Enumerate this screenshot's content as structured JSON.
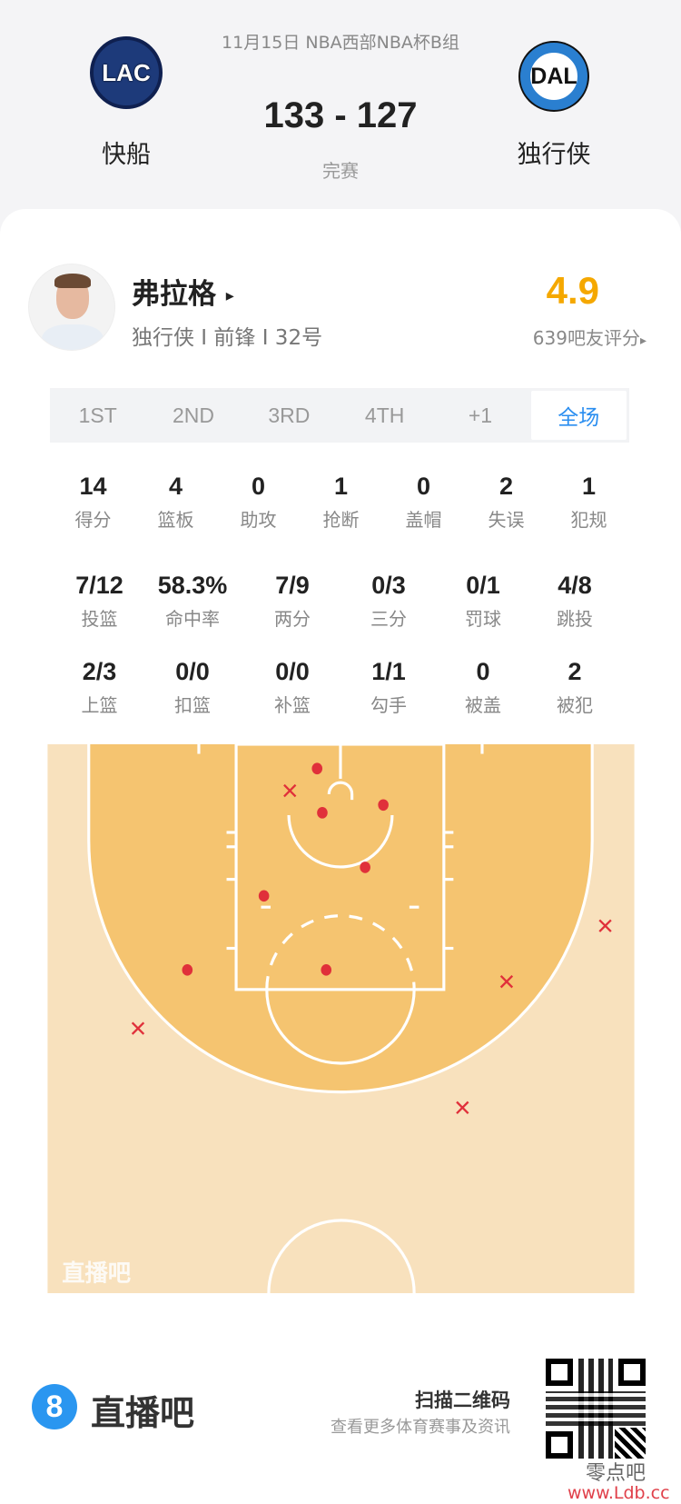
{
  "match": {
    "info": "11月15日 NBA西部NBA杯B组",
    "score": "133 - 127",
    "status": "完赛",
    "home": {
      "name": "快船",
      "abbr": "LAC"
    },
    "away": {
      "name": "独行侠",
      "abbr": "DAL"
    }
  },
  "player": {
    "name": "弗拉格",
    "arrow": "▸",
    "meta": "独行侠 I 前锋 I 32号",
    "rating": "4.9",
    "rating_label": "639吧友评分",
    "rating_arrow": "▸",
    "rating_color": "#f5a800"
  },
  "tabs": [
    {
      "label": "1ST"
    },
    {
      "label": "2ND"
    },
    {
      "label": "3RD"
    },
    {
      "label": "4TH"
    },
    {
      "label": "+1"
    },
    {
      "label": "全场",
      "active": true
    }
  ],
  "stats": [
    [
      {
        "v": "14",
        "l": "得分"
      },
      {
        "v": "4",
        "l": "篮板"
      },
      {
        "v": "0",
        "l": "助攻"
      },
      {
        "v": "1",
        "l": "抢断"
      },
      {
        "v": "0",
        "l": "盖帽"
      },
      {
        "v": "2",
        "l": "失误"
      },
      {
        "v": "1",
        "l": "犯规"
      }
    ],
    [
      {
        "v": "7/12",
        "l": "投篮"
      },
      {
        "v": "58.3%",
        "l": "命中率"
      },
      {
        "v": "7/9",
        "l": "两分"
      },
      {
        "v": "0/3",
        "l": "三分"
      },
      {
        "v": "0/1",
        "l": "罚球"
      },
      {
        "v": "4/8",
        "l": "跳投"
      }
    ],
    [
      {
        "v": "2/3",
        "l": "上篮"
      },
      {
        "v": "0/0",
        "l": "扣篮"
      },
      {
        "v": "0/0",
        "l": "补篮"
      },
      {
        "v": "1/1",
        "l": "勾手"
      },
      {
        "v": "0",
        "l": "被盖"
      },
      {
        "v": "2",
        "l": "被犯"
      }
    ]
  ],
  "chart_data": {
    "type": "scatter",
    "description_units": "feet from basket (x lateral, y toward midcourt)",
    "made_color": "#e0303a",
    "miss_color": "#e0303a",
    "shots": [
      {
        "x": -1.8,
        "y": -2.7,
        "made": true
      },
      {
        "x": -1.4,
        "y": 0.7,
        "made": true
      },
      {
        "x": 3.3,
        "y": 0.1,
        "made": true
      },
      {
        "x": 1.9,
        "y": 4.9,
        "made": true
      },
      {
        "x": -5.9,
        "y": 7.1,
        "made": true
      },
      {
        "x": -11.8,
        "y": 12.8,
        "made": true
      },
      {
        "x": -1.1,
        "y": 12.8,
        "made": true
      },
      {
        "x": -3.9,
        "y": -1.0,
        "made": false
      },
      {
        "x": 20.4,
        "y": 9.4,
        "made": false
      },
      {
        "x": 12.8,
        "y": 13.7,
        "made": false
      },
      {
        "x": -15.6,
        "y": 17.3,
        "made": false
      },
      {
        "x": 9.4,
        "y": 23.4,
        "made": false
      }
    ],
    "watermark": "直播吧"
  },
  "footer": {
    "brand": "直播吧",
    "brand_icon": "8",
    "scan": "扫描二维码",
    "sub": "查看更多体育赛事及资讯",
    "wm1": "零点吧",
    "wm2": "www.Ldb.cc"
  }
}
